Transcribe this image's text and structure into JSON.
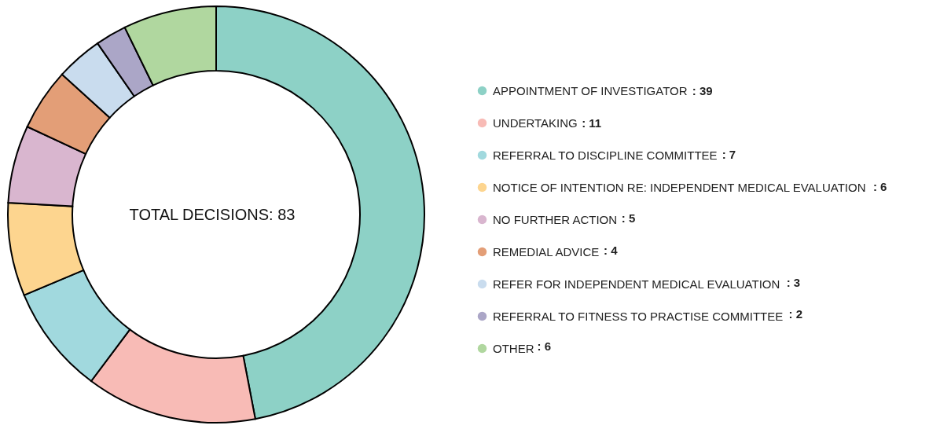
{
  "chart_data": {
    "type": "donut",
    "categories": [
      "APPOINTMENT OF INVESTIGATOR",
      "UNDERTAKING",
      "REFERRAL TO DISCIPLINE COMMITTEE",
      "NOTICE OF INTENTION RE: INDEPENDENT MEDICAL EVALUATION",
      "NO FURTHER ACTION",
      "REMEDIAL ADVICE",
      "REFER FOR INDEPENDENT MEDICAL EVALUATION",
      "REFERRAL TO FITNESS TO PRACTISE COMMITTEE",
      "OTHER"
    ],
    "values": [
      39,
      11,
      7,
      6,
      5,
      4,
      3,
      2,
      6
    ],
    "colors": [
      "#8dd1c6",
      "#f8bbb6",
      "#a1d9de",
      "#fdd58f",
      "#d9b6cf",
      "#e39e77",
      "#c9dcee",
      "#aba6c7",
      "#b0d79f"
    ],
    "value_labels": [
      ": 39",
      ": 11",
      ": 7",
      ": 6",
      ": 5",
      ": 4",
      ": 3",
      ": 2",
      ": 6"
    ],
    "annotations": [
      "TOTAL DECISIONS: 83"
    ],
    "legend": "right"
  }
}
